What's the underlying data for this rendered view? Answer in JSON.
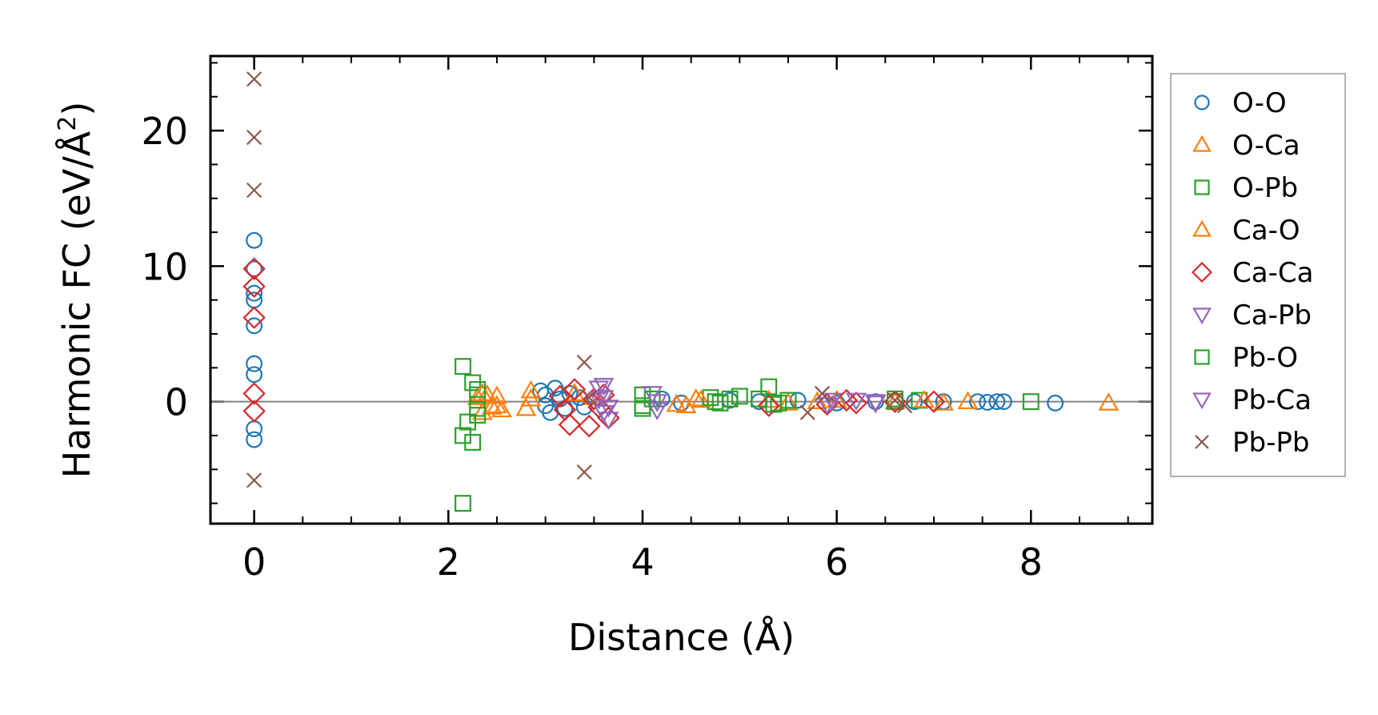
{
  "chart_data": {
    "type": "scatter",
    "title": "",
    "xlabel": "Distance (Å)",
    "ylabel_main": "Harmonic FC (eV/Å",
    "ylabel_sup": "2",
    "ylabel_close": ")",
    "xlim": [
      -0.45,
      9.25
    ],
    "ylim": [
      -9.0,
      25.5
    ],
    "xticks": [
      0,
      2,
      4,
      6,
      8
    ],
    "xtick_labels": [
      "0",
      "2",
      "4",
      "6",
      "8"
    ],
    "yticks": [
      0,
      10,
      20
    ],
    "ytick_labels": [
      "0",
      "10",
      "20"
    ],
    "x_minor_step": 0.5,
    "y_minor_step": 2.5,
    "zero_line": true,
    "grid": false,
    "legend_position": "outside-right",
    "series": [
      {
        "name": "O-O",
        "marker": "circle",
        "color": "#1f77b4",
        "points": [
          [
            0,
            11.9
          ],
          [
            0,
            9.8
          ],
          [
            0,
            8.0
          ],
          [
            0,
            7.5
          ],
          [
            0,
            5.6
          ],
          [
            0,
            2.8
          ],
          [
            0,
            2.0
          ],
          [
            0,
            -2.0
          ],
          [
            0,
            -2.8
          ],
          [
            2.95,
            0.8
          ],
          [
            3.0,
            0.5
          ],
          [
            3.0,
            -0.3
          ],
          [
            3.05,
            -0.8
          ],
          [
            3.1,
            1.0
          ],
          [
            3.15,
            0.2
          ],
          [
            3.2,
            -0.5
          ],
          [
            3.25,
            0.6
          ],
          [
            3.35,
            0.3
          ],
          [
            3.4,
            -0.4
          ],
          [
            4.2,
            0.2
          ],
          [
            4.4,
            -0.1
          ],
          [
            4.9,
            0.1
          ],
          [
            5.2,
            0
          ],
          [
            5.6,
            0.1
          ],
          [
            6.0,
            -0.1
          ],
          [
            6.4,
            0
          ],
          [
            6.8,
            0
          ],
          [
            7.1,
            0
          ],
          [
            7.45,
            0
          ],
          [
            7.55,
            -0.05
          ],
          [
            7.65,
            0
          ],
          [
            7.72,
            0
          ],
          [
            8.25,
            -0.1
          ]
        ]
      },
      {
        "name": "O-Ca",
        "marker": "triangle-up",
        "color": "#ff7f0e",
        "points": [
          [
            2.3,
            0.3
          ],
          [
            2.35,
            -0.8
          ],
          [
            2.4,
            0.5
          ],
          [
            2.45,
            -0.4
          ],
          [
            2.5,
            0.4
          ],
          [
            2.55,
            -0.6
          ],
          [
            2.8,
            -0.5
          ],
          [
            2.85,
            0.8
          ],
          [
            3.3,
            0.6
          ],
          [
            3.5,
            0.3
          ],
          [
            4.35,
            -0.2
          ],
          [
            4.45,
            -0.3
          ],
          [
            4.55,
            0.2
          ],
          [
            5.3,
            0.1
          ],
          [
            5.5,
            -0.1
          ],
          [
            6.0,
            0.1
          ],
          [
            6.6,
            0
          ],
          [
            7.1,
            -0.1
          ],
          [
            7.35,
            0
          ],
          [
            8.8,
            -0.1
          ]
        ]
      },
      {
        "name": "O-Pb",
        "marker": "square",
        "color": "#2ca02c",
        "points": [
          [
            2.15,
            2.6
          ],
          [
            2.15,
            -2.5
          ],
          [
            2.15,
            -7.5
          ],
          [
            2.2,
            -1.5
          ],
          [
            2.25,
            1.4
          ],
          [
            2.25,
            -3.0
          ],
          [
            2.3,
            -0.5
          ],
          [
            2.3,
            0.5
          ],
          [
            4.0,
            0.5
          ],
          [
            4.0,
            -0.5
          ],
          [
            4.1,
            0.2
          ],
          [
            4.7,
            0.3
          ],
          [
            4.8,
            -0.1
          ],
          [
            4.9,
            0.2
          ],
          [
            5.0,
            0.4
          ],
          [
            5.3,
            1.1
          ],
          [
            5.35,
            -0.2
          ],
          [
            5.5,
            0.1
          ],
          [
            6.6,
            0
          ],
          [
            6.85,
            0.1
          ],
          [
            8.0,
            0
          ]
        ]
      },
      {
        "name": "Ca-O",
        "marker": "triangle-up",
        "color": "#ff7f0e",
        "points": [
          [
            2.35,
            0.6
          ],
          [
            2.5,
            -0.3
          ],
          [
            2.85,
            0.2
          ],
          [
            4.6,
            0.1
          ],
          [
            5.8,
            0
          ],
          [
            6.9,
            0.1
          ]
        ]
      },
      {
        "name": "Ca-Ca",
        "marker": "diamond",
        "color": "#d62728",
        "points": [
          [
            0,
            9.8
          ],
          [
            0,
            8.5
          ],
          [
            0,
            6.2
          ],
          [
            0,
            0.6
          ],
          [
            0,
            -0.7
          ],
          [
            3.15,
            0.4
          ],
          [
            3.2,
            -0.6
          ],
          [
            3.25,
            -1.7
          ],
          [
            3.3,
            0.9
          ],
          [
            3.45,
            -1.8
          ],
          [
            3.5,
            0.2
          ],
          [
            3.55,
            -0.4
          ],
          [
            3.6,
            0.5
          ],
          [
            3.65,
            -1.2
          ],
          [
            5.3,
            -0.3
          ],
          [
            5.9,
            -0.2
          ],
          [
            6.1,
            0.1
          ],
          [
            6.2,
            -0.1
          ],
          [
            6.6,
            0
          ],
          [
            7.0,
            0
          ]
        ]
      },
      {
        "name": "Ca-Pb",
        "marker": "triangle-down",
        "color": "#9467bd",
        "points": [
          [
            3.55,
            1.0
          ],
          [
            3.6,
            0.3
          ],
          [
            3.6,
            -0.8
          ],
          [
            3.65,
            -1.3
          ],
          [
            4.1,
            0.6
          ],
          [
            4.15,
            -0.6
          ],
          [
            5.9,
            -0.2
          ],
          [
            6.2,
            0.1
          ],
          [
            6.4,
            -0.1
          ]
        ]
      },
      {
        "name": "Pb-O",
        "marker": "square",
        "color": "#2ca02c",
        "points": [
          [
            2.3,
            -1.0
          ],
          [
            2.3,
            0.9
          ],
          [
            4.0,
            -0.3
          ],
          [
            4.75,
            0
          ],
          [
            5.2,
            0.2
          ],
          [
            5.4,
            -0.1
          ],
          [
            6.6,
            0.2
          ]
        ]
      },
      {
        "name": "Pb-Ca",
        "marker": "triangle-down",
        "color": "#9467bd",
        "points": [
          [
            3.55,
            0.2
          ],
          [
            3.6,
            1.2
          ],
          [
            3.65,
            -0.4
          ],
          [
            4.15,
            0
          ],
          [
            5.95,
            0.1
          ],
          [
            6.4,
            0
          ]
        ]
      },
      {
        "name": "Pb-Pb",
        "marker": "x",
        "color": "#8c564b",
        "points": [
          [
            0,
            23.8
          ],
          [
            0,
            19.5
          ],
          [
            0,
            15.6
          ],
          [
            0,
            -5.8
          ],
          [
            3.4,
            2.9
          ],
          [
            3.4,
            -5.2
          ],
          [
            3.45,
            0.3
          ],
          [
            5.7,
            -0.8
          ],
          [
            5.85,
            0.6
          ],
          [
            6.6,
            0.1
          ],
          [
            6.7,
            -0.3
          ]
        ]
      }
    ]
  }
}
